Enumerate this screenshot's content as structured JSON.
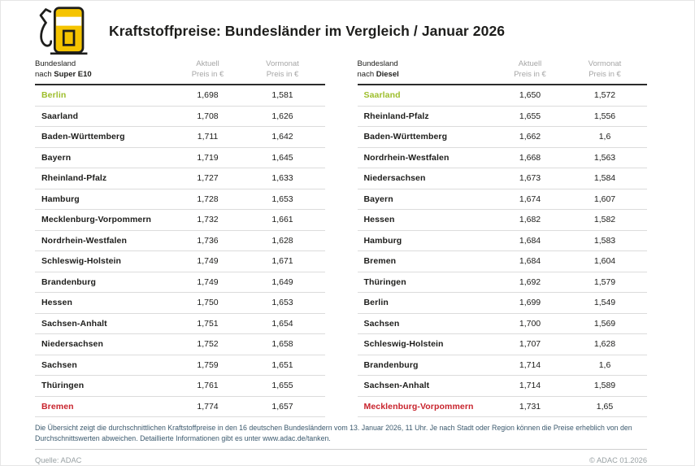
{
  "colors": {
    "yellow": "#F5C400",
    "ink": "#1D1D1B",
    "green": "#9DBE2B",
    "red": "#C8232C",
    "gray": "#A6A6A6",
    "line": "#DCDCDC",
    "headline-line": "#2B2B2B",
    "footnote": "#3C5A6E"
  },
  "header": {
    "title": "Kraftstoffpreise: Bundesländer im Vergleich / Januar 2026",
    "icon": "fuel-pump-icon"
  },
  "columns": {
    "current": "Aktuell",
    "previous": "Vormonat",
    "unit": "Preis in €"
  },
  "tables": [
    {
      "header_line1": "Bundesland",
      "header_line2_prefix": "nach ",
      "fuel": "Super E10",
      "rows": [
        {
          "state": "Berlin",
          "aktuell": "1,698",
          "vormonat": "1,581",
          "highlight": "green"
        },
        {
          "state": "Saarland",
          "aktuell": "1,708",
          "vormonat": "1,626"
        },
        {
          "state": "Baden-Württemberg",
          "aktuell": "1,711",
          "vormonat": "1,642"
        },
        {
          "state": "Bayern",
          "aktuell": "1,719",
          "vormonat": "1,645"
        },
        {
          "state": "Rheinland-Pfalz",
          "aktuell": "1,727",
          "vormonat": "1,633"
        },
        {
          "state": "Hamburg",
          "aktuell": "1,728",
          "vormonat": "1,653"
        },
        {
          "state": "Mecklenburg-Vorpommern",
          "aktuell": "1,732",
          "vormonat": "1,661"
        },
        {
          "state": "Nordrhein-Westfalen",
          "aktuell": "1,736",
          "vormonat": "1,628"
        },
        {
          "state": "Schleswig-Holstein",
          "aktuell": "1,749",
          "vormonat": "1,671"
        },
        {
          "state": "Brandenburg",
          "aktuell": "1,749",
          "vormonat": "1,649"
        },
        {
          "state": "Hessen",
          "aktuell": "1,750",
          "vormonat": "1,653"
        },
        {
          "state": "Sachsen-Anhalt",
          "aktuell": "1,751",
          "vormonat": "1,654"
        },
        {
          "state": "Niedersachsen",
          "aktuell": "1,752",
          "vormonat": "1,658"
        },
        {
          "state": "Sachsen",
          "aktuell": "1,759",
          "vormonat": "1,651"
        },
        {
          "state": "Thüringen",
          "aktuell": "1,761",
          "vormonat": "1,655"
        },
        {
          "state": "Bremen",
          "aktuell": "1,774",
          "vormonat": "1,657",
          "highlight": "red"
        }
      ]
    },
    {
      "header_line1": "Bundesland",
      "header_line2_prefix": "nach ",
      "fuel": "Diesel",
      "rows": [
        {
          "state": "Saarland",
          "aktuell": "1,650",
          "vormonat": "1,572",
          "highlight": "green"
        },
        {
          "state": "Rheinland-Pfalz",
          "aktuell": "1,655",
          "vormonat": "1,556"
        },
        {
          "state": "Baden-Württemberg",
          "aktuell": "1,662",
          "vormonat": "1,6"
        },
        {
          "state": "Nordrhein-Westfalen",
          "aktuell": "1,668",
          "vormonat": "1,563"
        },
        {
          "state": "Niedersachsen",
          "aktuell": "1,673",
          "vormonat": "1,584"
        },
        {
          "state": "Bayern",
          "aktuell": "1,674",
          "vormonat": "1,607"
        },
        {
          "state": "Hessen",
          "aktuell": "1,682",
          "vormonat": "1,582"
        },
        {
          "state": "Hamburg",
          "aktuell": "1,684",
          "vormonat": "1,583"
        },
        {
          "state": "Bremen",
          "aktuell": "1,684",
          "vormonat": "1,604"
        },
        {
          "state": "Thüringen",
          "aktuell": "1,692",
          "vormonat": "1,579"
        },
        {
          "state": "Berlin",
          "aktuell": "1,699",
          "vormonat": "1,549"
        },
        {
          "state": "Sachsen",
          "aktuell": "1,700",
          "vormonat": "1,569"
        },
        {
          "state": "Schleswig-Holstein",
          "aktuell": "1,707",
          "vormonat": "1,628"
        },
        {
          "state": "Brandenburg",
          "aktuell": "1,714",
          "vormonat": "1,6"
        },
        {
          "state": "Sachsen-Anhalt",
          "aktuell": "1,714",
          "vormonat": "1,589"
        },
        {
          "state": "Mecklenburg-Vorpommern",
          "aktuell": "1,731",
          "vormonat": "1,65",
          "highlight": "red"
        }
      ]
    }
  ],
  "footnote": {
    "text": "Die Übersicht zeigt die durchschnittlichen Kraftstoffpreise in den 16 deutschen Bundesländern vom 13. Januar 2026, 11 Uhr. Je nach Stadt oder Region können die Preise erheblich von den Durchschnittswerten abweichen. Detaillierte Informationen gibt es unter www.adac.de/tanken."
  },
  "footer": {
    "source": "Quelle: ADAC",
    "copyright": "© ADAC 01.2026"
  },
  "chart_data": [
    {
      "type": "table",
      "title": "Kraftstoffpreise: Bundesländer im Vergleich / Januar 2026",
      "subtitle": "Bundesland nach Super E10",
      "columns": [
        "Bundesland",
        "Aktuell Preis in €",
        "Vormonat Preis in €"
      ],
      "rows": [
        [
          "Berlin",
          1.698,
          1.581
        ],
        [
          "Saarland",
          1.708,
          1.626
        ],
        [
          "Baden-Württemberg",
          1.711,
          1.642
        ],
        [
          "Bayern",
          1.719,
          1.645
        ],
        [
          "Rheinland-Pfalz",
          1.727,
          1.633
        ],
        [
          "Hamburg",
          1.728,
          1.653
        ],
        [
          "Mecklenburg-Vorpommern",
          1.732,
          1.661
        ],
        [
          "Nordrhein-Westfalen",
          1.736,
          1.628
        ],
        [
          "Schleswig-Holstein",
          1.749,
          1.671
        ],
        [
          "Brandenburg",
          1.749,
          1.649
        ],
        [
          "Hessen",
          1.75,
          1.653
        ],
        [
          "Sachsen-Anhalt",
          1.751,
          1.654
        ],
        [
          "Niedersachsen",
          1.752,
          1.658
        ],
        [
          "Sachsen",
          1.759,
          1.651
        ],
        [
          "Thüringen",
          1.761,
          1.655
        ],
        [
          "Bremen",
          1.774,
          1.657
        ]
      ],
      "notes": "cheapest state highlighted green (Berlin), most expensive highlighted red (Bremen)"
    },
    {
      "type": "table",
      "title": "Kraftstoffpreise: Bundesländer im Vergleich / Januar 2026",
      "subtitle": "Bundesland nach Diesel",
      "columns": [
        "Bundesland",
        "Aktuell Preis in €",
        "Vormonat Preis in €"
      ],
      "rows": [
        [
          "Saarland",
          1.65,
          1.572
        ],
        [
          "Rheinland-Pfalz",
          1.655,
          1.556
        ],
        [
          "Baden-Württemberg",
          1.662,
          1.6
        ],
        [
          "Nordrhein-Westfalen",
          1.668,
          1.563
        ],
        [
          "Niedersachsen",
          1.673,
          1.584
        ],
        [
          "Bayern",
          1.674,
          1.607
        ],
        [
          "Hessen",
          1.682,
          1.582
        ],
        [
          "Hamburg",
          1.684,
          1.583
        ],
        [
          "Bremen",
          1.684,
          1.604
        ],
        [
          "Thüringen",
          1.692,
          1.579
        ],
        [
          "Berlin",
          1.699,
          1.549
        ],
        [
          "Sachsen",
          1.7,
          1.569
        ],
        [
          "Schleswig-Holstein",
          1.707,
          1.628
        ],
        [
          "Brandenburg",
          1.714,
          1.6
        ],
        [
          "Sachsen-Anhalt",
          1.714,
          1.589
        ],
        [
          "Mecklenburg-Vorpommern",
          1.731,
          1.65
        ]
      ],
      "notes": "cheapest state highlighted green (Saarland), most expensive highlighted red (Mecklenburg-Vorpommern)"
    }
  ]
}
